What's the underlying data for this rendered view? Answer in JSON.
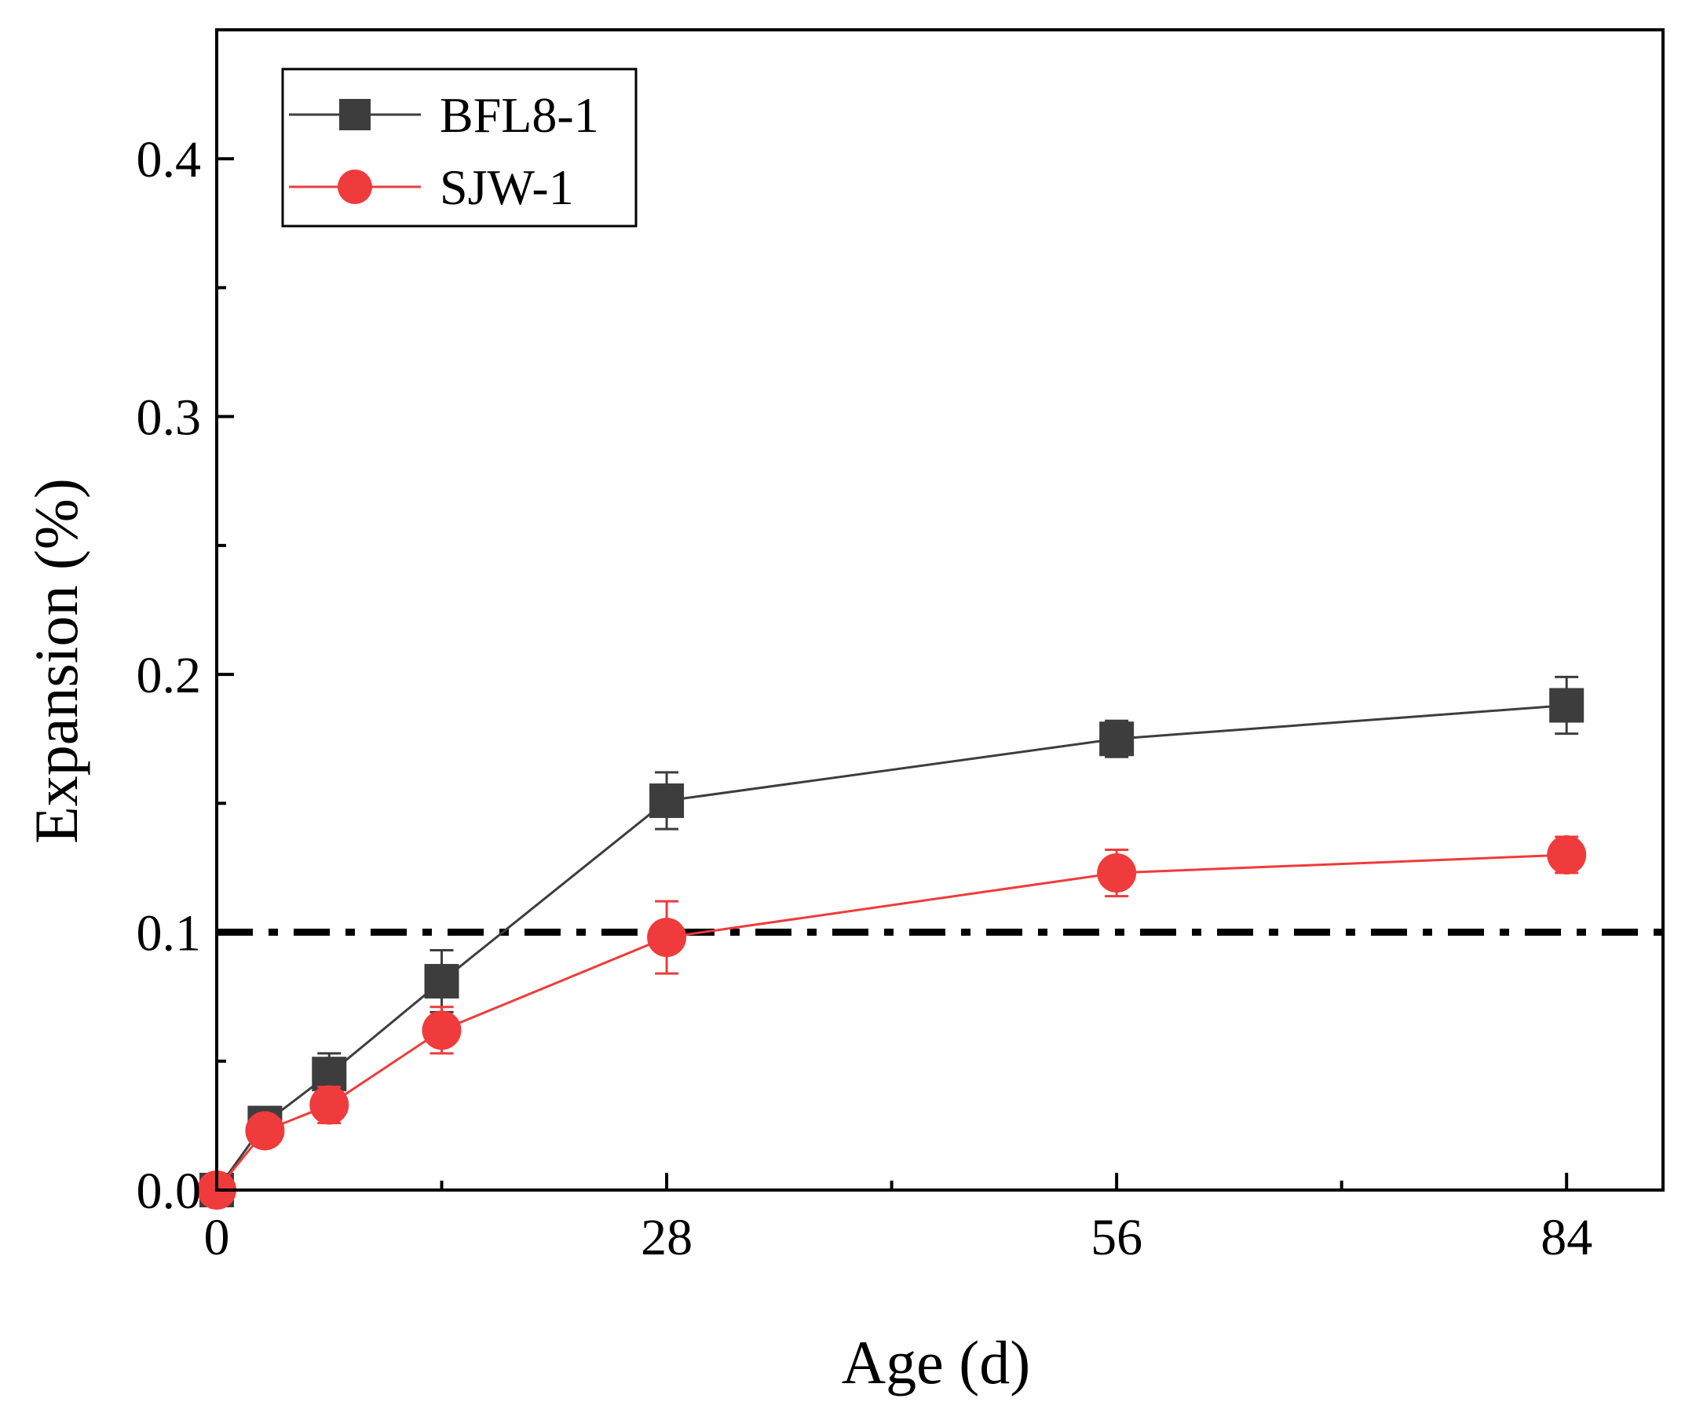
{
  "chart_data": {
    "type": "line",
    "title": "",
    "xlabel": "Age (d)",
    "ylabel": "Expansion (%)",
    "xlim": [
      0,
      90
    ],
    "ylim": [
      0,
      0.45
    ],
    "x_ticks": [
      0,
      28,
      56,
      84
    ],
    "x_tick_labels": [
      "0",
      "28",
      "56",
      "84"
    ],
    "x_minor_ticks": [
      14,
      42,
      70
    ],
    "y_ticks": [
      0.0,
      0.1,
      0.2,
      0.3,
      0.4
    ],
    "y_tick_labels": [
      "0.0",
      "0.1",
      "0.2",
      "0.3",
      "0.4"
    ],
    "y_minor_ticks": [
      0.05,
      0.15,
      0.25,
      0.35
    ],
    "grid": false,
    "legend_position": "top-left",
    "series": [
      {
        "name": "BFL8-1",
        "color": "#3d3d3d",
        "marker": "square",
        "x": [
          0,
          3,
          7,
          14,
          28,
          56,
          84
        ],
        "y": [
          0.0,
          0.026,
          0.045,
          0.081,
          0.151,
          0.175,
          0.188
        ],
        "error": [
          0.0,
          0.004,
          0.008,
          0.012,
          0.011,
          0.007,
          0.011
        ]
      },
      {
        "name": "SJW-1",
        "color": "#ef3b3b",
        "marker": "circle",
        "x": [
          0,
          3,
          7,
          14,
          28,
          56,
          84
        ],
        "y": [
          0.0,
          0.023,
          0.033,
          0.062,
          0.098,
          0.123,
          0.13
        ],
        "error": [
          0.0,
          0.003,
          0.007,
          0.009,
          0.014,
          0.009,
          0.007
        ]
      }
    ],
    "reference_lines": [
      {
        "orientation": "horizontal",
        "y": 0.1,
        "style": "dash-dot",
        "color": "#000000"
      }
    ]
  }
}
